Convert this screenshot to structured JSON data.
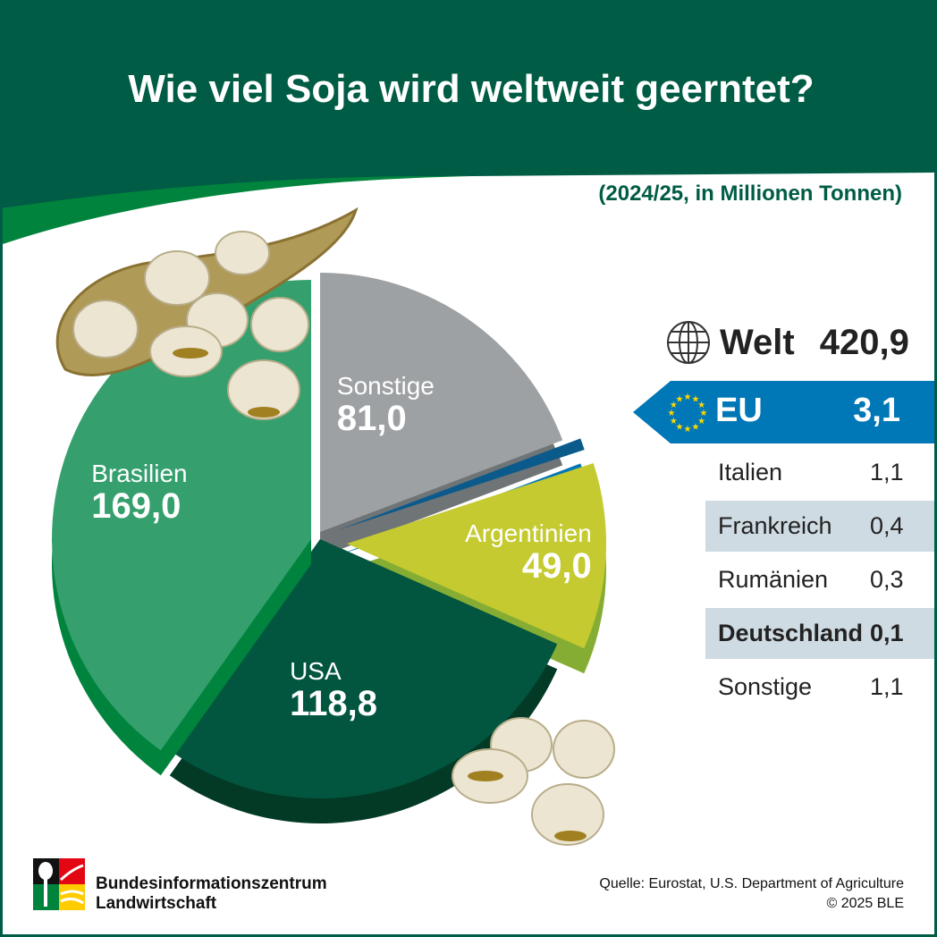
{
  "title": "Wie viel Soja wird weltweit geerntet?",
  "subtitle": "(2024/25, in Millionen Tonnen)",
  "world": {
    "label": "Welt",
    "value": "420,9",
    "icon": "globe-icon"
  },
  "eu": {
    "label": "EU",
    "value": "3,1",
    "icon": "eu-flag-stars-icon",
    "color": "#0077b6"
  },
  "eu_breakdown": [
    {
      "label": "Italien",
      "value": "1,1"
    },
    {
      "label": "Frankreich",
      "value": "0,4"
    },
    {
      "label": "Rumänien",
      "value": "0,3"
    },
    {
      "label": "Deutschland",
      "value": "0,1"
    },
    {
      "label": "Sonstige",
      "value": "1,1"
    }
  ],
  "chart_data": {
    "type": "pie",
    "unit": "Millionen Tonnen",
    "total": 420.9,
    "slices": [
      {
        "label": "Sonstige",
        "value": 81.0,
        "display": "81,0",
        "color": "#9da1a3"
      },
      {
        "label": "EU",
        "value": 3.1,
        "display": "3,1",
        "color": "#0b5a8c"
      },
      {
        "label": "Argentinien",
        "value": 49.0,
        "display": "49,0",
        "color": "#c4ca30"
      },
      {
        "label": "USA",
        "value": 118.8,
        "display": "118,8",
        "color": "#02563f"
      },
      {
        "label": "Brasilien",
        "value": 169.0,
        "display": "169,0",
        "color": "#35a06e"
      }
    ]
  },
  "footer": {
    "org_line1": "Bundesinformationszentrum",
    "org_line2": "Landwirtschaft",
    "source": "Quelle: Eurostat, U.S. Department of Agriculture",
    "copyright": "© 2025 BLE"
  }
}
